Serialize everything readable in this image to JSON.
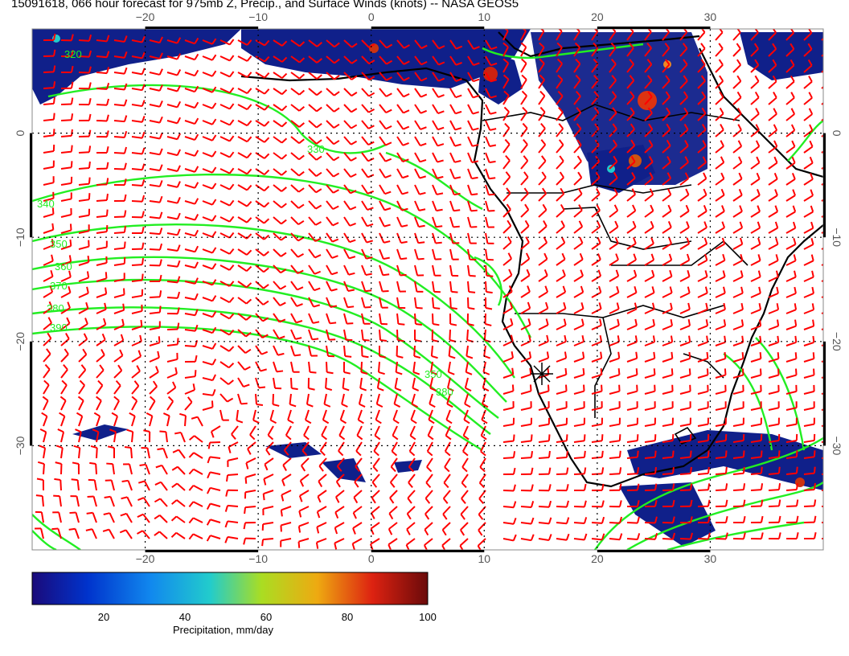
{
  "title": "15091618, 066 hour forecast for 975mb Z, Precip., and Surface Winds (knots) -- NASA GEOS5",
  "map": {
    "lon_range": [
      -30,
      40
    ],
    "lat_range": [
      -40,
      10
    ],
    "lon_ticks": [
      {
        "value": -20,
        "label": "−20"
      },
      {
        "value": -10,
        "label": "−10"
      },
      {
        "value": 0,
        "label": "0"
      },
      {
        "value": 10,
        "label": "10"
      },
      {
        "value": 20,
        "label": "20"
      },
      {
        "value": 30,
        "label": "30"
      }
    ],
    "lat_ticks": [
      {
        "value": 0,
        "label": "0"
      },
      {
        "value": -10,
        "label": "−10"
      },
      {
        "value": -20,
        "label": "−20"
      },
      {
        "value": -30,
        "label": "−30"
      }
    ],
    "contour_labels": [
      "320",
      "330",
      "340",
      "350",
      "360",
      "370",
      "380",
      "390"
    ],
    "colors": {
      "contour": "#22ee22",
      "wind_barb": "#ff0000",
      "coastline": "#000000",
      "grid": "#000000"
    }
  },
  "colorbar": {
    "label": "Precipitation, mm/day",
    "min": 0,
    "max": 100,
    "ticks": [
      "20",
      "40",
      "60",
      "80",
      "100"
    ],
    "colors": [
      "#1a0a7a",
      "#0033cc",
      "#1188ee",
      "#22cccc",
      "#aadd22",
      "#eeaa11",
      "#dd2211",
      "#6a0a0a"
    ]
  }
}
